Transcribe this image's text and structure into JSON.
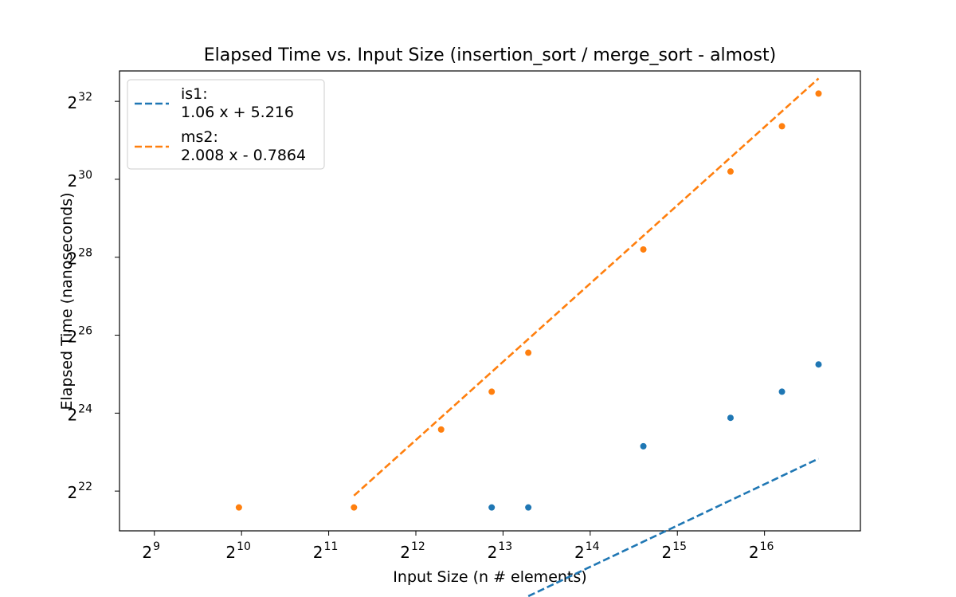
{
  "chart_data": {
    "type": "scatter",
    "title": "Elapsed Time vs. Input Size (insertion_sort / merge_sort - almost)",
    "xlabel": "Input Size (n # elements)",
    "ylabel": "Elapsed Time (nanoseconds)",
    "x_scale": "log2",
    "y_scale": "log2",
    "xlim": [
      8.6,
      17.1
    ],
    "ylim": [
      20.98,
      32.78
    ],
    "x_ticks": [
      9,
      10,
      11,
      12,
      13,
      14,
      15,
      16
    ],
    "y_ticks": [
      22,
      24,
      26,
      28,
      30,
      32
    ],
    "tick_base": "2",
    "legend_position": "upper left",
    "series": [
      {
        "name": "is1",
        "color": "#1f77b4",
        "points": [
          {
            "x": 12.87,
            "y": 21.58
          },
          {
            "x": 13.29,
            "y": 21.58
          },
          {
            "x": 14.61,
            "y": 23.15
          },
          {
            "x": 15.61,
            "y": 23.88
          },
          {
            "x": 16.2,
            "y": 24.55
          },
          {
            "x": 16.62,
            "y": 25.25
          }
        ],
        "fit": {
          "label": "1.06 x + 5.216",
          "slope": 1.06,
          "intercept": 5.216,
          "x_range": [
            13.29,
            16.62
          ]
        }
      },
      {
        "name": "ms2",
        "color": "#ff7f0e",
        "points": [
          {
            "x": 9.97,
            "y": 21.58
          },
          {
            "x": 11.29,
            "y": 21.58
          },
          {
            "x": 12.29,
            "y": 23.58
          },
          {
            "x": 12.87,
            "y": 24.55
          },
          {
            "x": 13.29,
            "y": 25.55
          },
          {
            "x": 14.61,
            "y": 28.2
          },
          {
            "x": 15.61,
            "y": 30.2
          },
          {
            "x": 16.2,
            "y": 31.36
          },
          {
            "x": 16.62,
            "y": 32.2
          }
        ],
        "fit": {
          "label": "2.008 x - 0.7864",
          "slope": 2.008,
          "intercept": -0.7864,
          "x_range": [
            11.29,
            16.62
          ]
        }
      }
    ]
  }
}
